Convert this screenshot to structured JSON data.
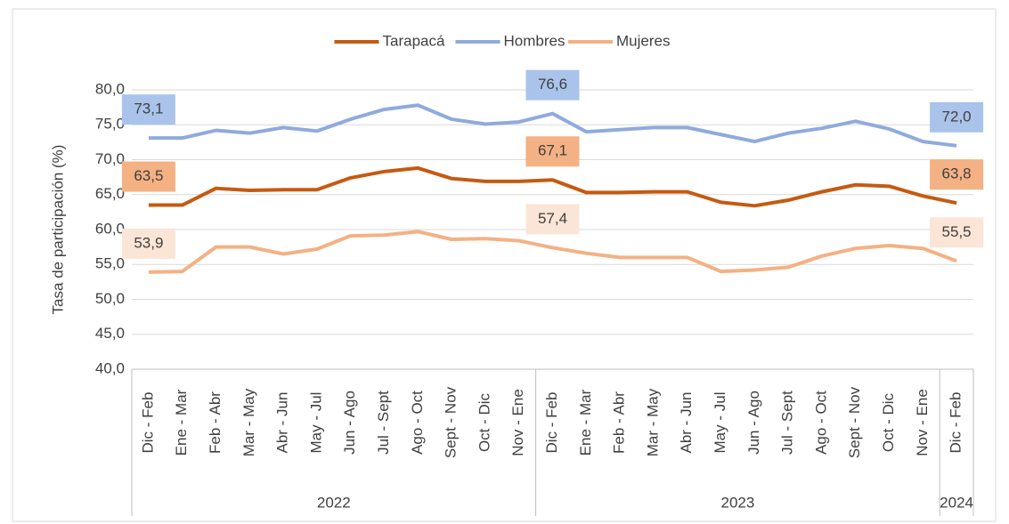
{
  "chart_data": {
    "type": "line",
    "y_label": "Tasa de participación (%)",
    "categories": [
      "Dic - Feb",
      "Ene - Mar",
      "Feb - Abr",
      "Mar - May",
      "Abr - Jun",
      "May - Jul",
      "Jun - Ago",
      "Jul - Sept",
      "Ago - Oct",
      "Sept - Nov",
      "Oct - Dic",
      "Nov - Ene",
      "Dic - Feb",
      "Ene - Mar",
      "Feb - Abr",
      "Mar - May",
      "Abr - Jun",
      "May - Jul",
      "Jun - Ago",
      "Jul - Sept",
      "Ago - Oct",
      "Sept - Nov",
      "Oct - Dic",
      "Nov - Ene",
      "Dic - Feb"
    ],
    "groups": [
      {
        "label": "2022",
        "categories": 12
      },
      {
        "label": "2023",
        "categories": 12
      },
      {
        "label": "2024",
        "categories": 1
      }
    ],
    "series": [
      {
        "name": "Tarapacá",
        "color": "#c55a11",
        "label_color": "#f4b183",
        "values": [
          63.5,
          63.5,
          65.9,
          65.6,
          65.7,
          65.7,
          67.4,
          68.3,
          68.8,
          67.3,
          66.9,
          66.9,
          67.1,
          65.3,
          65.3,
          65.4,
          65.4,
          63.9,
          63.4,
          64.2,
          65.4,
          66.4,
          66.2,
          64.8,
          63.8
        ],
        "value_labels": [
          "63,5",
          null,
          null,
          null,
          null,
          null,
          null,
          null,
          null,
          null,
          null,
          null,
          "67,1",
          null,
          null,
          null,
          null,
          null,
          null,
          null,
          null,
          null,
          null,
          null,
          "63,8"
        ]
      },
      {
        "name": "Hombres",
        "color": "#8faadc",
        "label_color": "#a9c3ea",
        "values": [
          73.1,
          73.1,
          74.2,
          73.8,
          74.6,
          74.1,
          75.8,
          77.2,
          77.8,
          75.8,
          75.1,
          75.4,
          76.6,
          74.0,
          74.3,
          74.6,
          74.6,
          73.6,
          72.6,
          73.8,
          74.5,
          75.5,
          74.4,
          72.6,
          72.0
        ],
        "value_labels": [
          "73,1",
          null,
          null,
          null,
          null,
          null,
          null,
          null,
          null,
          null,
          null,
          null,
          "76,6",
          null,
          null,
          null,
          null,
          null,
          null,
          null,
          null,
          null,
          null,
          null,
          "72,0"
        ]
      },
      {
        "name": "Mujeres",
        "color": "#f4b183",
        "label_color": "#fbe5d6",
        "values": [
          53.9,
          54.0,
          57.5,
          57.5,
          56.5,
          57.2,
          59.1,
          59.2,
          59.7,
          58.6,
          58.7,
          58.4,
          57.4,
          56.6,
          56.0,
          56.0,
          56.0,
          54.0,
          54.2,
          54.6,
          56.2,
          57.3,
          57.7,
          57.3,
          55.5
        ],
        "value_labels": [
          "53,9",
          null,
          null,
          null,
          null,
          null,
          null,
          null,
          null,
          null,
          null,
          null,
          "57,4",
          null,
          null,
          null,
          null,
          null,
          null,
          null,
          null,
          null,
          null,
          null,
          "55,5"
        ]
      }
    ],
    "ylim": [
      40,
      80
    ],
    "yticks": [
      {
        "value": 40,
        "label": "40,0"
      },
      {
        "value": 45,
        "label": "45,0"
      },
      {
        "value": 50,
        "label": "50,0"
      },
      {
        "value": 55,
        "label": "55,0"
      },
      {
        "value": 60,
        "label": "60,0"
      },
      {
        "value": 65,
        "label": "65,0"
      },
      {
        "value": 70,
        "label": "70,0"
      },
      {
        "value": 75,
        "label": "75,0"
      },
      {
        "value": 80,
        "label": "80,0"
      }
    ],
    "grid": true,
    "legend": "top"
  }
}
